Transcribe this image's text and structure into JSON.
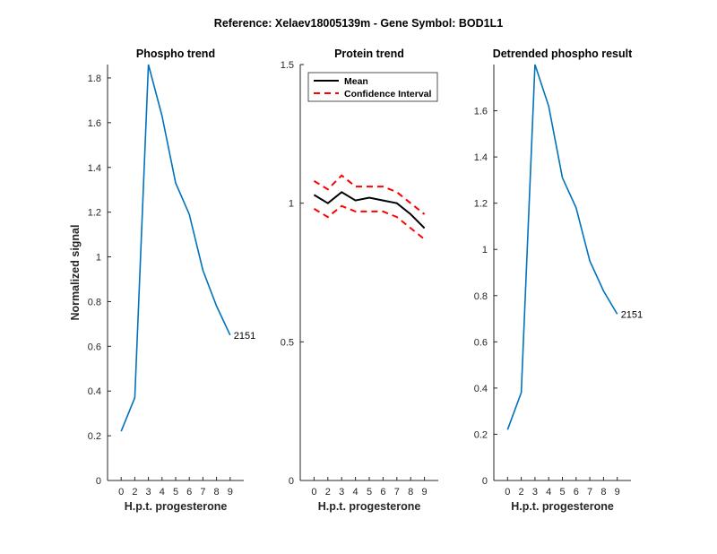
{
  "figure_title": "Reference:  Xelaev18005139m - Gene Symbol:  BOD1L1",
  "colors": {
    "series_blue": "#0072BD",
    "mean_black": "#000000",
    "ci_red": "#FF0000",
    "axis": "#262626"
  },
  "chart_data": [
    {
      "type": "line",
      "title": "Phospho trend",
      "xlabel": "H.p.t. progesterone",
      "ylabel": "Normalized signal",
      "x_tick_labels": [
        "0",
        "2",
        "3",
        "4",
        "5",
        "6",
        "7",
        "8",
        "9"
      ],
      "y_ticks": [
        0,
        0.2,
        0.4,
        0.6,
        0.8,
        1,
        1.2,
        1.4,
        1.6,
        1.8
      ],
      "y_tick_labels": [
        "0",
        "0.2",
        "0.4",
        "0.6",
        "0.8",
        "1",
        "1.2",
        "1.4",
        "1.6",
        "1.8"
      ],
      "ylim": [
        0,
        1.86
      ],
      "series": [
        {
          "values": [
            0.22,
            0.37,
            1.86,
            1.63,
            1.33,
            1.19,
            0.94,
            0.78,
            0.65
          ]
        }
      ],
      "annotation": "2151"
    },
    {
      "type": "line",
      "title": "Protein trend",
      "xlabel": "H.p.t. progesterone",
      "ylabel": "",
      "x_tick_labels": [
        "0",
        "2",
        "3",
        "4",
        "5",
        "6",
        "7",
        "8",
        "9"
      ],
      "y_ticks": [
        0,
        0.5,
        1,
        1.5
      ],
      "y_tick_labels": [
        "0",
        "0.5",
        "1",
        "1.5"
      ],
      "ylim": [
        0,
        1.5
      ],
      "legend_position": "top-left",
      "series": [
        {
          "name": "Mean",
          "values": [
            1.03,
            1.0,
            1.04,
            1.01,
            1.02,
            1.01,
            1.0,
            0.96,
            0.91
          ]
        },
        {
          "name": "Confidence Interval",
          "values": [
            1.08,
            1.05,
            1.1,
            1.06,
            1.06,
            1.06,
            1.04,
            1.0,
            0.96
          ]
        },
        {
          "values": [
            0.98,
            0.95,
            0.99,
            0.97,
            0.97,
            0.97,
            0.95,
            0.91,
            0.87
          ]
        }
      ]
    },
    {
      "type": "line",
      "title": "Detrended phospho result",
      "xlabel": "H.p.t. progesterone",
      "ylabel": "",
      "x_tick_labels": [
        "0",
        "2",
        "3",
        "4",
        "5",
        "6",
        "7",
        "8",
        "9"
      ],
      "y_ticks": [
        0,
        0.2,
        0.4,
        0.6,
        0.8,
        1,
        1.2,
        1.4,
        1.6
      ],
      "y_tick_labels": [
        "0",
        "0.2",
        "0.4",
        "0.6",
        "0.8",
        "1",
        "1.2",
        "1.4",
        "1.6"
      ],
      "ylim": [
        0,
        1.8
      ],
      "series": [
        {
          "values": [
            0.22,
            0.38,
            1.8,
            1.62,
            1.31,
            1.18,
            0.95,
            0.82,
            0.72
          ]
        }
      ],
      "annotation": "2151"
    }
  ]
}
